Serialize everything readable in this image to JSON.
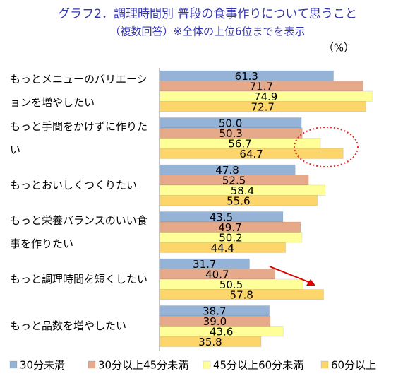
{
  "chart_data": {
    "type": "bar",
    "orientation": "horizontal",
    "title": "グラフ2．調理時間別 普段の食事作りについて思うこと",
    "subtitle": "（複数回答）※全体の上位6位までを表示",
    "unit_label": "（%）",
    "categories": [
      "もっとメニューのバリエーションを増やしたい",
      "もっと手間をかけずに作りたい",
      "もっとおいしくつくりたい",
      "もっと栄養バランスのいい食事を作りたい",
      "もっと調理時間を短くしたい",
      "もっと品数を増やしたい"
    ],
    "series": [
      {
        "name": "30分未満",
        "color": "#95b3d7",
        "values": [
          61.3,
          50.0,
          47.8,
          43.5,
          31.7,
          38.7
        ],
        "value_labels": [
          "61.3",
          "50.0",
          "47.8",
          "43.5",
          "31.7",
          "38.7"
        ]
      },
      {
        "name": "30分以上45分未満",
        "color": "#e6a98a",
        "values": [
          71.7,
          50.3,
          52.5,
          49.7,
          40.7,
          39.0
        ],
        "value_labels": [
          "71.7",
          "50.3",
          "52.5",
          "49.7",
          "40.7",
          "39.0"
        ]
      },
      {
        "name": "45分以上60分未満",
        "color": "#ffff99",
        "values": [
          74.9,
          56.7,
          58.4,
          50.2,
          50.5,
          43.6
        ],
        "value_labels": [
          "74.9",
          "56.7",
          "58.4",
          "50.2",
          "50.5",
          "43.6"
        ]
      },
      {
        "name": "60分以上",
        "color": "#fcd56b",
        "values": [
          72.7,
          64.7,
          55.6,
          44.4,
          57.8,
          35.8
        ],
        "value_labels": [
          "72.7",
          "64.7",
          "55.6",
          "44.4",
          "57.8",
          "35.8"
        ]
      }
    ],
    "xlim": [
      0,
      90
    ]
  }
}
